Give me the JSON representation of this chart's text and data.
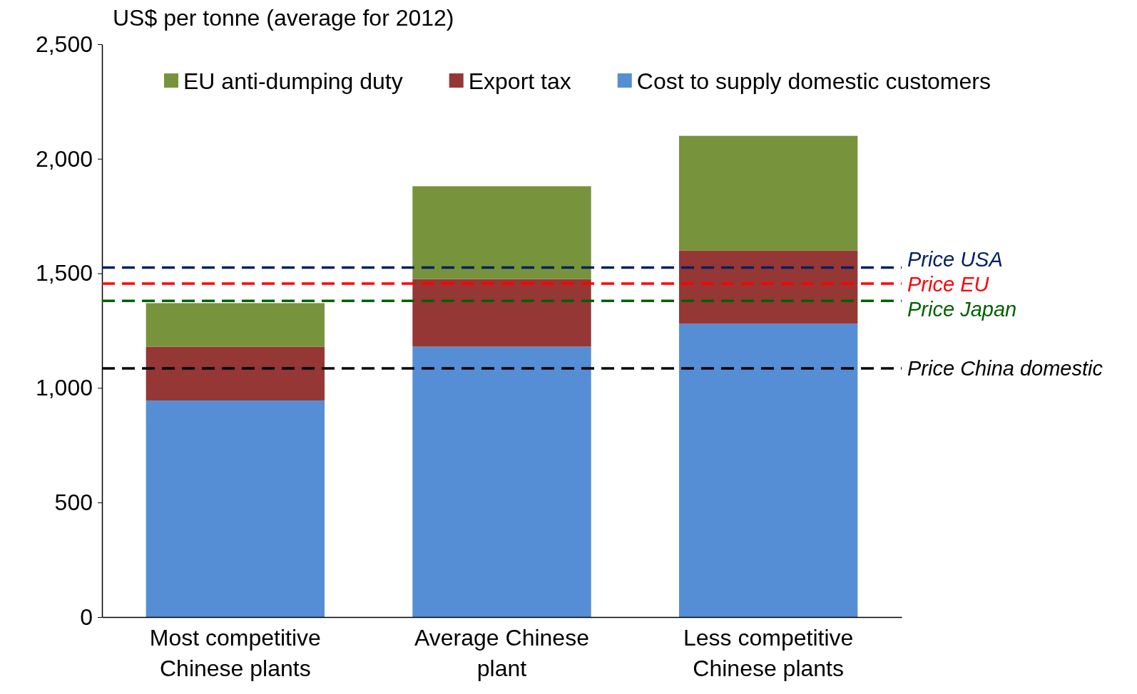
{
  "chart_data": {
    "type": "bar",
    "stacked": true,
    "ylabel": "US$ per tonne (average for 2012)",
    "categories": [
      "Most competitive\nChinese plants",
      "Average Chinese\nplant",
      "Less competitive\nChinese plants"
    ],
    "series": [
      {
        "name": "Cost to supply domestic customers",
        "color": "#558ed5",
        "values": [
          945,
          1180,
          1280
        ]
      },
      {
        "name": "Export tax",
        "color": "#953735",
        "values": [
          235,
          295,
          320
        ]
      },
      {
        "name": "EU anti-dumping duty",
        "color": "#77933c",
        "values": [
          190,
          405,
          500
        ]
      }
    ],
    "ylim": [
      0,
      2500
    ],
    "yticks": [
      {
        "value": 0,
        "label": "0"
      },
      {
        "value": 500,
        "label": "500"
      },
      {
        "value": 1000,
        "label": "1,000"
      },
      {
        "value": 1500,
        "label": "1,500"
      },
      {
        "value": 2000,
        "label": "2,000"
      },
      {
        "value": 2500,
        "label": "2,500"
      }
    ],
    "ref_lines": [
      {
        "axis": "y",
        "value": 1525,
        "label": "Price USA",
        "color": "#002060",
        "line_style": "dashed"
      },
      {
        "axis": "y",
        "value": 1455,
        "label": "Price EU",
        "color": "#ff0000",
        "line_style": "dashed"
      },
      {
        "axis": "y",
        "value": 1380,
        "label": "Price Japan",
        "color": "#006100",
        "line_style": "dashed"
      },
      {
        "axis": "y",
        "value": 1085,
        "label": "Price China domestic",
        "color": "#000000",
        "line_style": "dashed"
      }
    ],
    "legend": "top",
    "grid": false
  }
}
